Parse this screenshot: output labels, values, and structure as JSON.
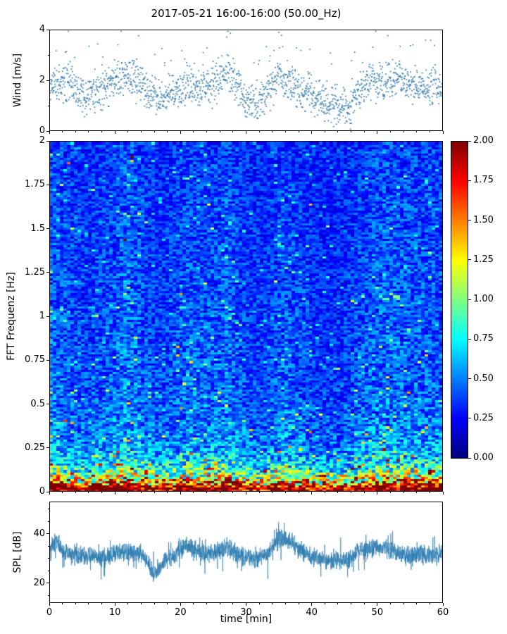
{
  "figure": {
    "title": "2017-05-21 16:00-16:00 (50.00_Hz)",
    "xlabel": "time [min]",
    "background": "#ffffff",
    "xticks": {
      "lim": [
        0,
        60
      ],
      "major": [
        {
          "v": 0,
          "label": "0"
        },
        {
          "v": 10,
          "label": "10"
        },
        {
          "v": 20,
          "label": "20"
        },
        {
          "v": 30,
          "label": "30"
        },
        {
          "v": 40,
          "label": "40"
        },
        {
          "v": 50,
          "label": "50"
        },
        {
          "v": 60,
          "label": "60"
        }
      ],
      "minor": [
        2,
        4,
        6,
        8,
        12,
        14,
        16,
        18,
        22,
        24,
        26,
        28,
        32,
        34,
        36,
        38,
        42,
        44,
        46,
        48,
        52,
        54,
        56,
        58
      ]
    }
  },
  "chart_data": [
    {
      "type": "scatter",
      "name": "wind-speed",
      "ylabel": "Wind [m/s]",
      "xlim": [
        0,
        60
      ],
      "ylim": [
        0,
        4
      ],
      "yticks": [
        {
          "v": 0,
          "label": "0"
        },
        {
          "v": 2,
          "label": "2"
        },
        {
          "v": 4,
          "label": "4"
        }
      ],
      "yticks_minor": [
        1,
        3
      ],
      "color": "#2f77a8",
      "marker": "point",
      "n_points": 1750,
      "mean_x": [
        0,
        1,
        3,
        5,
        7,
        9,
        11,
        13,
        15,
        17,
        19,
        21,
        23,
        25,
        27,
        28,
        30,
        32,
        34,
        35,
        37,
        39,
        41,
        43,
        45,
        46,
        47,
        49,
        51,
        53,
        55,
        57,
        59,
        60
      ],
      "mean_y": [
        1.7,
        1.9,
        2.1,
        1.3,
        1.5,
        1.8,
        2.2,
        2.1,
        1.5,
        1.2,
        1.6,
        1.8,
        1.7,
        1.8,
        2.3,
        2.1,
        1.2,
        1.0,
        1.7,
        2.2,
        1.8,
        1.5,
        1.3,
        1.1,
        0.9,
        0.8,
        1.6,
        2.0,
        1.9,
        2.1,
        1.8,
        1.7,
        1.9,
        1.6
      ],
      "spread": 0.75,
      "render_seed": 11,
      "description": "Wind speed scatter: dense band 0.5-2.5 m/s, gusts to ~3.9 near t=3, 11-13, 27, 35 and 48-57 min; calmer near t=45-46"
    },
    {
      "type": "heatmap",
      "name": "fft-spectrogram",
      "ylabel": "FFT Frequenz [Hz]",
      "xlim": [
        0,
        60
      ],
      "ylim": [
        0,
        2
      ],
      "yticks": [
        {
          "v": 0,
          "label": "0"
        },
        {
          "v": 0.25,
          "label": "0.25"
        },
        {
          "v": 0.5,
          "label": "0.5"
        },
        {
          "v": 0.75,
          "label": "0.75"
        },
        {
          "v": 1,
          "label": "1"
        },
        {
          "v": 1.25,
          "label": "1.25"
        },
        {
          "v": 1.5,
          "label": "1.5"
        },
        {
          "v": 1.75,
          "label": "1.75"
        },
        {
          "v": 2,
          "label": "2"
        }
      ],
      "colormap": "jet",
      "clim": [
        0,
        2
      ],
      "grid_cols": 112,
      "grid_rows": 160,
      "freq_profile_f": [
        0,
        0.02,
        0.05,
        0.08,
        0.11,
        0.15,
        0.2,
        0.28,
        0.4,
        0.6,
        1.0,
        1.5,
        2.0
      ],
      "freq_profile_v": [
        1.95,
        1.85,
        1.45,
        1.1,
        0.9,
        0.72,
        0.6,
        0.5,
        0.44,
        0.4,
        0.37,
        0.35,
        0.33
      ],
      "time_mod_x": [
        0,
        3,
        6,
        9,
        12,
        15,
        18,
        21,
        24,
        27,
        30,
        33,
        36,
        39,
        42,
        45,
        48,
        51,
        54,
        57,
        60
      ],
      "time_mod_v": [
        1.15,
        1.05,
        0.95,
        1.05,
        1.2,
        1.0,
        0.95,
        1.1,
        1.05,
        1.15,
        0.95,
        0.9,
        1.1,
        0.95,
        0.85,
        0.9,
        1.05,
        1.15,
        1.1,
        1.1,
        1.05
      ],
      "render_seed": 7,
      "colorbar": {
        "clim": [
          0,
          2
        ],
        "ticks": [
          {
            "v": 2,
            "label": "2.00"
          },
          {
            "v": 1.75,
            "label": "1.75"
          },
          {
            "v": 1.5,
            "label": "1.50"
          },
          {
            "v": 1.25,
            "label": "1.25"
          },
          {
            "v": 1,
            "label": "1.00"
          },
          {
            "v": 0.75,
            "label": "0.75"
          },
          {
            "v": 0.5,
            "label": "0.50"
          },
          {
            "v": 0.25,
            "label": "0.25"
          },
          {
            "v": 0,
            "label": "0.00"
          }
        ]
      },
      "description": "Jet-colormap spectrogram: values near 2 (dark red/orange) below ~0.1 Hz, green/cyan mix 0.1-0.3 Hz, mostly blue (~0.3-0.5) above 0.3 Hz with random cyan/green horizontal streaks"
    },
    {
      "type": "line",
      "name": "spl",
      "ylabel": "SPL [dB]",
      "xlim": [
        0,
        60
      ],
      "ylim": [
        12,
        53
      ],
      "yticks": [
        {
          "v": 20,
          "label": "20"
        },
        {
          "v": 40,
          "label": "40"
        }
      ],
      "yticks_minor": [
        15,
        25,
        30,
        35,
        45,
        50
      ],
      "color": "#2b7bb0",
      "n_points": 2800,
      "mean_x": [
        0,
        1,
        2,
        4,
        6,
        8,
        10,
        12,
        14,
        15,
        16,
        17,
        19,
        21,
        22,
        24,
        26,
        27,
        29,
        31,
        33,
        34,
        35,
        37,
        38,
        40,
        42,
        44,
        46,
        47,
        49,
        51,
        53,
        55,
        57,
        59,
        60
      ],
      "mean_y": [
        34,
        37,
        33,
        32,
        31,
        30,
        32,
        33,
        32,
        28,
        23,
        28,
        31,
        36,
        33,
        32,
        33,
        35,
        31,
        30,
        31,
        34,
        38,
        37,
        34,
        31,
        29,
        29,
        30,
        33,
        34,
        35,
        32,
        31,
        32,
        31,
        32
      ],
      "spread": 4.5,
      "render_seed": 3,
      "description": "Noisy SPL trace fluctuating ~25-42 dB; dip to ~14 dB near t=16 min; peaks to ~52 dB near t=1, 21, 35-37 min"
    }
  ]
}
